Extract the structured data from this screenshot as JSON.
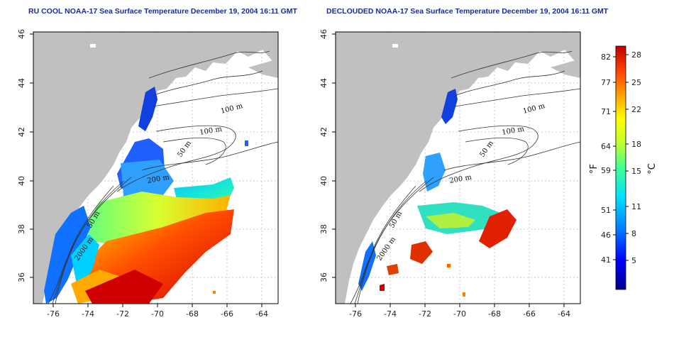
{
  "panels": [
    {
      "title": "RU COOL NOAA-17 Sea Surface Temperature December 19, 2004 16:11 GMT",
      "x_ticks": [
        "-76",
        "-74",
        "-72",
        "-70",
        "-68",
        "-66",
        "-64"
      ],
      "y_ticks": [
        "36",
        "38",
        "40",
        "42",
        "44",
        "46"
      ],
      "contour_labels": [
        "100 m",
        "100 m",
        "50 m",
        "200 m",
        "50 m",
        "2000 m"
      ]
    },
    {
      "title": "DECLOUDED NOAA-17 Sea Surface Temperature December 19, 2004 16:11 GMT",
      "x_ticks": [
        "-76",
        "-74",
        "-72",
        "-70",
        "-68",
        "-66",
        "-64"
      ],
      "y_ticks": [
        "36",
        "38",
        "40",
        "42",
        "44",
        "46"
      ],
      "contour_labels": [
        "100 m",
        "100 m",
        "50 m",
        "200 m",
        "50 m",
        "2000 m"
      ]
    }
  ],
  "colorbar": {
    "fahrenheit_unit": "°F",
    "celsius_unit": "°C",
    "fahrenheit_ticks": [
      "82",
      "77",
      "71",
      "64",
      "59",
      "51",
      "46",
      "41"
    ],
    "celsius_ticks": [
      "28",
      "25",
      "22",
      "18",
      "15",
      "11",
      "8",
      "5"
    ],
    "colors": [
      "#00008b",
      "#0000ff",
      "#0080ff",
      "#00e0ff",
      "#40ff90",
      "#c0ff30",
      "#ffff00",
      "#ffa000",
      "#ff4000",
      "#c00000"
    ]
  },
  "colors": {
    "land": "#c0c0c0",
    "title": "#1a2a9a"
  }
}
